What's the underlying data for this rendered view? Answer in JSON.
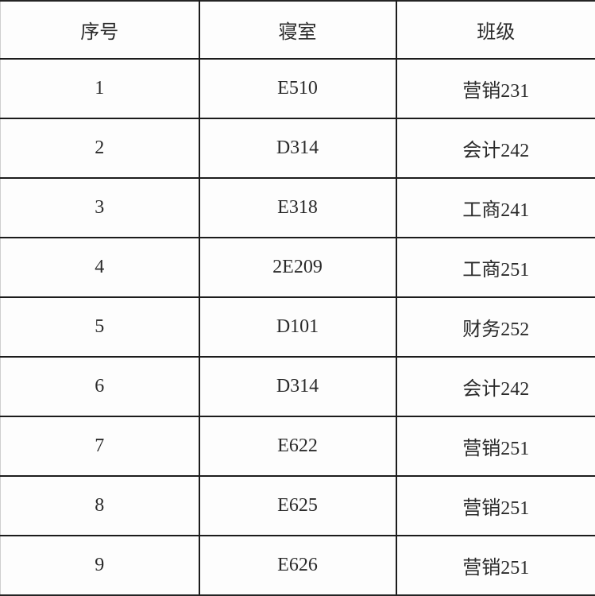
{
  "table": {
    "headers": [
      "序号",
      "寝室",
      "班级"
    ],
    "rows": [
      {
        "index": "1",
        "dorm": "E510",
        "class": "营销231"
      },
      {
        "index": "2",
        "dorm": "D314",
        "class": "会计242"
      },
      {
        "index": "3",
        "dorm": "E318",
        "class": "工商241"
      },
      {
        "index": "4",
        "dorm": "2E209",
        "class": "工商251"
      },
      {
        "index": "5",
        "dorm": "D101",
        "class": "财务252"
      },
      {
        "index": "6",
        "dorm": "D314",
        "class": "会计242"
      },
      {
        "index": "7",
        "dorm": "E622",
        "class": "营销251"
      },
      {
        "index": "8",
        "dorm": "E625",
        "class": "营销251"
      },
      {
        "index": "9",
        "dorm": "E626",
        "class": "营销251"
      }
    ],
    "colors": {
      "grid": "#1c1c1c",
      "outer_edge": "#cfcfcf",
      "text": "#2a2a2a",
      "background": "#fdfdfd"
    }
  }
}
